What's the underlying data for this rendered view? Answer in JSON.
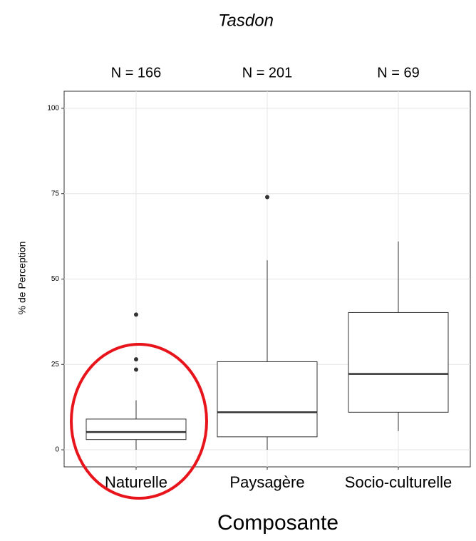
{
  "chart_data": {
    "type": "box",
    "title": "Tasdon",
    "xlabel": "Composante",
    "ylabel": "% de Perception",
    "categories": [
      "Naturelle",
      "Paysagère",
      "Socio-culturelle"
    ],
    "annotations": [
      "N = 166",
      "N = 201",
      "N = 69"
    ],
    "boxes": [
      {
        "min": 0,
        "q1": 3,
        "median": 5.2,
        "q3": 9,
        "max": 14.5,
        "outliers": [
          23.5,
          26.5,
          39.6
        ]
      },
      {
        "min": 0,
        "q1": 3.8,
        "median": 11,
        "q3": 25.8,
        "max": 55.5,
        "outliers": [
          74
        ]
      },
      {
        "min": 5.5,
        "q1": 11,
        "median": 22.2,
        "q3": 40.2,
        "max": 61,
        "outliers": []
      }
    ],
    "ylim": [
      -5,
      105
    ],
    "yticks": [
      0,
      25,
      50,
      75,
      100
    ],
    "grid": true,
    "box_color": "#333333",
    "outlier_color": "#333333"
  }
}
